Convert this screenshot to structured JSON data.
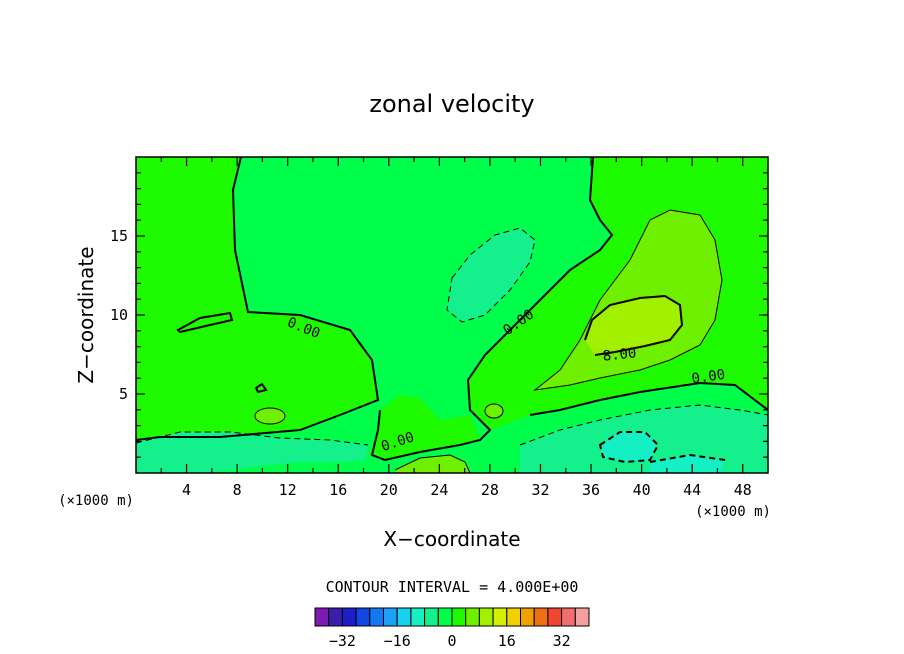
{
  "chart_data": {
    "type": "contour",
    "title": "zonal velocity",
    "xlabel": "X−coordinate",
    "ylabel": "Z−coordinate",
    "x_unit": "(×1000 m)",
    "x_unit_right": "(×1000 m)",
    "xlim": [
      0,
      50
    ],
    "ylim": [
      0,
      20
    ],
    "x_ticks": [
      "4",
      "8",
      "12",
      "16",
      "20",
      "24",
      "28",
      "32",
      "36",
      "40",
      "44",
      "48"
    ],
    "y_ticks": [
      "5",
      "10",
      "15"
    ],
    "contour_interval_label": "CONTOUR INTERVAL = 4.000E+00",
    "contour_labels": [
      "0.00",
      "0.00",
      "0.00",
      "0.00",
      "8.00"
    ],
    "colorbar": {
      "levels": [
        -36,
        -32,
        -28,
        -24,
        -20,
        -16,
        -12,
        -8,
        -4,
        0,
        4,
        8,
        12,
        16,
        20,
        24,
        28,
        32,
        36
      ],
      "tick_labels": [
        "−32",
        "−16",
        "0",
        "16",
        "32"
      ],
      "tick_values": [
        -32,
        -16,
        0,
        16,
        32
      ],
      "colors": [
        "#7d1ab4",
        "#3c1eaa",
        "#1e1ec8",
        "#1446e6",
        "#1478f0",
        "#1ea0f5",
        "#19d2f0",
        "#14f0c3",
        "#14f08c",
        "#00ff4a",
        "#1efa00",
        "#6ef000",
        "#a0f000",
        "#d2f000",
        "#f0d200",
        "#f0a000",
        "#f06e14",
        "#f04632",
        "#f06e6e",
        "#f5a0a0"
      ]
    }
  }
}
